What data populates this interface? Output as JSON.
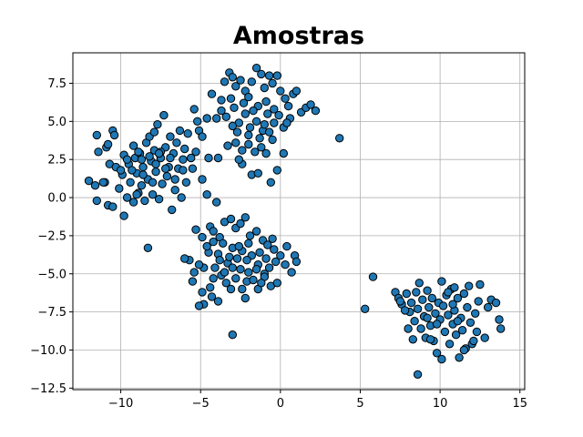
{
  "chart_data": {
    "type": "scatter",
    "title": "Amostras",
    "xlabel": "",
    "ylabel": "",
    "xlim": [
      -13.0,
      15.3
    ],
    "ylim": [
      -12.6,
      9.5
    ],
    "xticks": [
      -10,
      -5,
      0,
      5,
      10,
      15
    ],
    "xtick_labels": [
      "−10",
      "−5",
      "0",
      "5",
      "10",
      "15"
    ],
    "yticks": [
      -12.5,
      -10.0,
      -7.5,
      -5.0,
      -2.5,
      0.0,
      2.5,
      5.0,
      7.5
    ],
    "ytick_labels": [
      "−12.5",
      "−10.0",
      "−7.5",
      "−5.0",
      "−2.5",
      "0.0",
      "2.5",
      "5.0",
      "7.5"
    ],
    "grid": true,
    "marker_color": "#1f77b4",
    "edge_color": "#000000",
    "points": [
      [
        -12.0,
        1.1
      ],
      [
        -11.6,
        0.8
      ],
      [
        -11.5,
        4.1
      ],
      [
        -11.4,
        3.0
      ],
      [
        -11.5,
        -0.2
      ],
      [
        -11.0,
        1.0
      ],
      [
        -10.9,
        3.3
      ],
      [
        -10.8,
        3.5
      ],
      [
        -10.7,
        2.2
      ],
      [
        -10.8,
        -0.5
      ],
      [
        -10.5,
        4.4
      ],
      [
        -10.4,
        4.1
      ],
      [
        -10.5,
        -0.6
      ],
      [
        -10.3,
        2.0
      ],
      [
        -10.1,
        0.6
      ],
      [
        -9.9,
        1.5
      ],
      [
        -9.8,
        2.8
      ],
      [
        -9.8,
        -1.2
      ],
      [
        -9.6,
        0.0
      ],
      [
        -9.5,
        2.2
      ],
      [
        -9.4,
        1.0
      ],
      [
        -9.2,
        3.4
      ],
      [
        -9.1,
        2.6
      ],
      [
        -9.0,
        1.6
      ],
      [
        -8.9,
        0.3
      ],
      [
        -8.8,
        2.9
      ],
      [
        -8.7,
        0.8
      ],
      [
        -8.6,
        2.0
      ],
      [
        -8.5,
        -0.2
      ],
      [
        -8.4,
        3.6
      ],
      [
        -8.3,
        1.2
      ],
      [
        -8.2,
        4.0
      ],
      [
        -8.1,
        2.4
      ],
      [
        -8.0,
        0.2
      ],
      [
        -7.9,
        3.1
      ],
      [
        -7.8,
        1.7
      ],
      [
        -7.7,
        4.8
      ],
      [
        -7.6,
        -0.1
      ],
      [
        -7.5,
        2.6
      ],
      [
        -7.4,
        0.9
      ],
      [
        -7.3,
        5.4
      ],
      [
        -7.2,
        3.3
      ],
      [
        -7.1,
        1.4
      ],
      [
        -7.0,
        2.0
      ],
      [
        -6.9,
        4.0
      ],
      [
        -6.8,
        -0.8
      ],
      [
        -6.7,
        2.9
      ],
      [
        -6.6,
        0.5
      ],
      [
        -6.5,
        3.6
      ],
      [
        -6.4,
        1.9
      ],
      [
        -6.3,
        4.4
      ],
      [
        -6.2,
        0.0
      ],
      [
        -6.1,
        2.5
      ],
      [
        -6.0,
        3.2
      ],
      [
        -5.9,
        1.0
      ],
      [
        -5.8,
        4.2
      ],
      [
        -5.6,
        2.6
      ],
      [
        -5.5,
        1.9
      ],
      [
        -5.3,
        3.0
      ],
      [
        -5.1,
        4.4
      ],
      [
        -9.6,
        2.5
      ],
      [
        -9.3,
        1.8
      ],
      [
        -8.9,
        3.0
      ],
      [
        -8.6,
        1.5
      ],
      [
        -8.2,
        2.7
      ],
      [
        -7.8,
        2.2
      ],
      [
        -7.5,
        3.0
      ],
      [
        -7.2,
        1.9
      ],
      [
        -6.9,
        2.6
      ],
      [
        -8.0,
        1.0
      ],
      [
        -9.0,
        0.2
      ],
      [
        -10.0,
        1.8
      ],
      [
        -7.6,
        2.9
      ],
      [
        -8.3,
        -3.3
      ],
      [
        -11.1,
        1.0
      ],
      [
        -9.2,
        -0.3
      ],
      [
        -8.7,
        2.5
      ],
      [
        -7.9,
        4.3
      ],
      [
        -6.6,
        1.2
      ],
      [
        -5.2,
        5.0
      ],
      [
        -4.9,
        1.2
      ],
      [
        -4.9,
        4.0
      ],
      [
        -4.5,
        2.6
      ],
      [
        -5.4,
        5.8
      ],
      [
        -6.1,
        1.8
      ],
      [
        -3.5,
        7.6
      ],
      [
        -3.2,
        8.2
      ],
      [
        -3.0,
        7.9
      ],
      [
        -2.8,
        7.3
      ],
      [
        -2.5,
        7.7
      ],
      [
        -2.2,
        7.0
      ],
      [
        -2.0,
        6.6
      ],
      [
        -1.8,
        7.6
      ],
      [
        -1.5,
        8.5
      ],
      [
        -1.2,
        8.1
      ],
      [
        -1.0,
        7.2
      ],
      [
        -0.7,
        8.0
      ],
      [
        -0.5,
        7.5
      ],
      [
        -0.2,
        8.0
      ],
      [
        0.0,
        7.0
      ],
      [
        0.3,
        6.5
      ],
      [
        0.5,
        6.0
      ],
      [
        0.8,
        6.8
      ],
      [
        1.0,
        7.0
      ],
      [
        1.3,
        5.6
      ],
      [
        1.6,
        5.9
      ],
      [
        1.9,
        6.1
      ],
      [
        2.2,
        5.7
      ],
      [
        0.6,
        5.2
      ],
      [
        0.2,
        4.6
      ],
      [
        -0.4,
        4.9
      ],
      [
        -0.8,
        5.5
      ],
      [
        -1.1,
        4.4
      ],
      [
        -1.5,
        5.0
      ],
      [
        -1.9,
        4.6
      ],
      [
        -2.2,
        5.5
      ],
      [
        -2.6,
        4.9
      ],
      [
        -3.0,
        4.7
      ],
      [
        -3.4,
        5.3
      ],
      [
        -3.7,
        6.4
      ],
      [
        -4.0,
        5.2
      ],
      [
        -4.3,
        6.8
      ],
      [
        -4.6,
        5.2
      ],
      [
        -2.0,
        3.5
      ],
      [
        -1.6,
        3.0
      ],
      [
        -1.2,
        3.3
      ],
      [
        -0.9,
        2.9
      ],
      [
        -0.5,
        3.8
      ],
      [
        -2.8,
        3.6
      ],
      [
        -2.4,
        3.1
      ],
      [
        -3.3,
        3.4
      ],
      [
        -2.4,
        2.2
      ],
      [
        -1.8,
        1.5
      ],
      [
        -1.4,
        1.6
      ],
      [
        -0.6,
        1.0
      ],
      [
        -0.2,
        1.8
      ],
      [
        0.2,
        2.9
      ],
      [
        -2.6,
        2.5
      ],
      [
        -3.9,
        2.6
      ],
      [
        3.7,
        3.9
      ],
      [
        -1.4,
        6.0
      ],
      [
        -0.9,
        6.3
      ],
      [
        -0.4,
        5.8
      ],
      [
        -2.3,
        6.2
      ],
      [
        -3.1,
        6.5
      ],
      [
        -1.7,
        5.7
      ],
      [
        -2.9,
        5.9
      ],
      [
        -3.7,
        5.7
      ],
      [
        -0.1,
        5.4
      ],
      [
        0.4,
        4.9
      ],
      [
        -1.0,
        4.8
      ],
      [
        -2.0,
        4.1
      ],
      [
        -2.7,
        4.3
      ],
      [
        -1.3,
        3.9
      ],
      [
        -0.7,
        4.3
      ],
      [
        -4.4,
        -1.9
      ],
      [
        -4.2,
        -2.2
      ],
      [
        -3.8,
        -2.6
      ],
      [
        -3.5,
        -1.6
      ],
      [
        -3.1,
        -1.4
      ],
      [
        -2.8,
        -2.0
      ],
      [
        -2.5,
        -1.7
      ],
      [
        -2.2,
        -1.3
      ],
      [
        -1.9,
        -2.5
      ],
      [
        -1.5,
        -2.2
      ],
      [
        -1.1,
        -2.8
      ],
      [
        -0.8,
        -3.1
      ],
      [
        -0.4,
        -3.4
      ],
      [
        0.0,
        -3.8
      ],
      [
        0.3,
        -4.4
      ],
      [
        0.7,
        -4.9
      ],
      [
        0.9,
        -3.8
      ],
      [
        0.4,
        -3.2
      ],
      [
        -0.3,
        -4.2
      ],
      [
        -0.7,
        -4.6
      ],
      [
        -1.0,
        -5.0
      ],
      [
        -1.4,
        -4.4
      ],
      [
        -1.8,
        -3.8
      ],
      [
        -2.1,
        -4.1
      ],
      [
        -2.4,
        -3.5
      ],
      [
        -2.7,
        -4.0
      ],
      [
        -3.0,
        -3.3
      ],
      [
        -3.3,
        -4.3
      ],
      [
        -3.6,
        -3.0
      ],
      [
        -3.9,
        -3.7
      ],
      [
        -4.2,
        -2.9
      ],
      [
        -4.5,
        -3.6
      ],
      [
        -4.8,
        -4.6
      ],
      [
        -5.1,
        -4.4
      ],
      [
        -5.4,
        -4.9
      ],
      [
        -5.7,
        -4.1
      ],
      [
        -6.0,
        -4.0
      ],
      [
        -5.3,
        -2.1
      ],
      [
        -4.9,
        -2.6
      ],
      [
        -4.6,
        -3.2
      ],
      [
        -4.1,
        -4.6
      ],
      [
        -3.7,
        -5.1
      ],
      [
        -3.4,
        -5.6
      ],
      [
        -3.1,
        -6.0
      ],
      [
        -2.8,
        -5.3
      ],
      [
        -2.4,
        -6.0
      ],
      [
        -2.1,
        -5.5
      ],
      [
        -1.7,
        -5.4
      ],
      [
        -1.4,
        -6.0
      ],
      [
        -1.0,
        -5.2
      ],
      [
        -0.6,
        -5.8
      ],
      [
        -0.2,
        -5.6
      ],
      [
        -3.0,
        -9.0
      ],
      [
        -4.8,
        -7.0
      ],
      [
        -4.9,
        -6.2
      ],
      [
        -4.4,
        -5.9
      ],
      [
        -3.9,
        -6.8
      ],
      [
        -2.2,
        -6.6
      ],
      [
        -5.1,
        -7.1
      ],
      [
        -4.3,
        -6.5
      ],
      [
        -3.5,
        -4.9
      ],
      [
        -3.0,
        -4.6
      ],
      [
        -2.5,
        -4.7
      ],
      [
        -2.0,
        -4.9
      ],
      [
        -1.5,
        -4.7
      ],
      [
        -3.2,
        -3.9
      ],
      [
        -2.6,
        -3.2
      ],
      [
        -2.0,
        -3.0
      ],
      [
        -1.3,
        -3.6
      ],
      [
        -3.8,
        -4.1
      ],
      [
        -4.0,
        -0.3
      ],
      [
        -4.6,
        0.2
      ],
      [
        -4.2,
        -5.3
      ],
      [
        -0.5,
        -2.7
      ],
      [
        1.0,
        -4.2
      ],
      [
        -5.5,
        -5.5
      ],
      [
        -1.2,
        -5.6
      ],
      [
        -0.9,
        -4.0
      ],
      [
        5.3,
        -7.3
      ],
      [
        5.8,
        -5.2
      ],
      [
        7.2,
        -6.2
      ],
      [
        7.4,
        -6.6
      ],
      [
        7.6,
        -7.0
      ],
      [
        7.9,
        -6.3
      ],
      [
        8.1,
        -7.5
      ],
      [
        8.2,
        -6.9
      ],
      [
        8.4,
        -8.1
      ],
      [
        8.5,
        -6.2
      ],
      [
        8.6,
        -7.3
      ],
      [
        8.8,
        -8.6
      ],
      [
        8.9,
        -6.7
      ],
      [
        9.0,
        -7.8
      ],
      [
        9.1,
        -9.2
      ],
      [
        9.2,
        -6.1
      ],
      [
        9.3,
        -7.2
      ],
      [
        9.4,
        -8.4
      ],
      [
        9.5,
        -6.6
      ],
      [
        9.6,
        -9.4
      ],
      [
        9.7,
        -7.6
      ],
      [
        9.8,
        -10.2
      ],
      [
        9.9,
        -6.9
      ],
      [
        10.0,
        -8.0
      ],
      [
        10.1,
        -5.5
      ],
      [
        10.2,
        -7.1
      ],
      [
        10.3,
        -8.8
      ],
      [
        10.4,
        -6.4
      ],
      [
        10.5,
        -7.7
      ],
      [
        10.6,
        -9.6
      ],
      [
        10.7,
        -6.0
      ],
      [
        10.8,
        -8.3
      ],
      [
        10.9,
        -7.4
      ],
      [
        11.0,
        -9.0
      ],
      [
        11.1,
        -6.6
      ],
      [
        11.2,
        -10.5
      ],
      [
        11.3,
        -7.9
      ],
      [
        11.4,
        -8.7
      ],
      [
        11.5,
        -6.3
      ],
      [
        11.6,
        -9.9
      ],
      [
        11.7,
        -7.2
      ],
      [
        11.9,
        -8.2
      ],
      [
        12.0,
        -9.6
      ],
      [
        12.2,
        -7.6
      ],
      [
        12.3,
        -8.8
      ],
      [
        12.4,
        -6.8
      ],
      [
        12.5,
        -5.7
      ],
      [
        12.8,
        -9.2
      ],
      [
        13.0,
        -7.2
      ],
      [
        13.2,
        -6.7
      ],
      [
        13.5,
        -6.9
      ],
      [
        13.7,
        -8.0
      ],
      [
        13.8,
        -8.6
      ],
      [
        8.6,
        -11.6
      ],
      [
        10.1,
        -10.6
      ],
      [
        11.5,
        -10.0
      ],
      [
        7.5,
        -6.8
      ],
      [
        8.0,
        -8.6
      ],
      [
        9.4,
        -9.3
      ],
      [
        10.9,
        -5.9
      ],
      [
        11.8,
        -5.8
      ],
      [
        12.1,
        -9.4
      ],
      [
        7.8,
        -7.4
      ],
      [
        8.3,
        -9.3
      ],
      [
        9.8,
        -8.3
      ],
      [
        10.5,
        -6.2
      ],
      [
        11.1,
        -8.1
      ],
      [
        8.7,
        -5.6
      ],
      [
        9.2,
        -7.9
      ],
      [
        10.8,
        -7.0
      ]
    ]
  }
}
